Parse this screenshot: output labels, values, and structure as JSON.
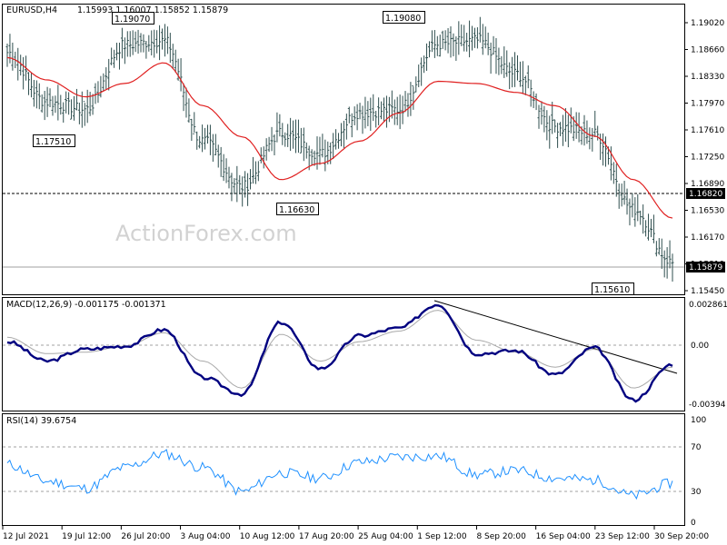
{
  "header": {
    "symbol": "EURUSD,H4",
    "ohlc": "1.15993 1.16007 1.15852 1.15879"
  },
  "watermark": "ActionForex.com",
  "price_axis": {
    "ticks": [
      "1.19020",
      "1.18660",
      "1.18330",
      "1.17970",
      "1.17610",
      "1.17250",
      "1.16890",
      "1.16530",
      "1.16170",
      "1.15810",
      "1.15450"
    ],
    "marker_level": "1.16820",
    "current_price": "1.15879"
  },
  "annotations": {
    "high_jul": "1.19070",
    "low_jul": "1.17510",
    "low_aug": "1.16630",
    "high_sep": "1.19080",
    "low_sep": "1.15610"
  },
  "macd_panel": {
    "title": "MACD(12,26,9) -0.001175 -0.001371",
    "ticks": [
      "0.002861",
      "0.00",
      "-0.00394"
    ]
  },
  "rsi_panel": {
    "title": "RSI(14) 39.6754",
    "ticks": [
      "100",
      "70",
      "30",
      "0"
    ]
  },
  "time_axis": [
    "12 Jul 2021",
    "19 Jul 12:00",
    "26 Jul 20:00",
    "3 Aug 04:00",
    "10 Aug 12:00",
    "17 Aug 20:00",
    "25 Aug 04:00",
    "1 Sep 12:00",
    "8 Sep 20:00",
    "16 Sep 04:00",
    "23 Sep 12:00",
    "30 Sep 20:00"
  ],
  "chart_data": [
    {
      "type": "line",
      "panel": "price",
      "x_labels": [
        "12 Jul 2021",
        "19 Jul 12:00",
        "26 Jul 20:00",
        "3 Aug 04:00",
        "10 Aug 12:00",
        "17 Aug 20:00",
        "25 Aug 04:00",
        "1 Sep 12:00",
        "8 Sep 20:00",
        "16 Sep 04:00",
        "23 Sep 12:00",
        "30 Sep 20:00"
      ],
      "ylim": [
        1.1545,
        1.1938
      ],
      "series": [
        {
          "values": [
            1.1872,
            1.1805,
            1.1795,
            1.1882,
            1.1888,
            1.1752,
            1.169,
            1.1763,
            1.1735,
            1.1791,
            1.1795,
            1.1883,
            1.1888,
            1.1843,
            1.1772,
            1.1762,
            1.166,
            1.1588
          ]
        },
        {
          "values": [
            1.1865,
            1.1835,
            1.1812,
            1.183,
            1.1858,
            1.18,
            1.1758,
            1.17,
            1.1722,
            1.1752,
            1.179,
            1.1833,
            1.183,
            1.1818,
            1.18,
            1.1759,
            1.17,
            1.1648
          ]
        }
      ],
      "colors": {
        "price": "#2f4f4f",
        "ma": "#e02020"
      }
    },
    {
      "type": "line",
      "panel": "macd",
      "ylim": [
        -0.00394,
        0.002861
      ],
      "series": [
        {
          "values": [
            0.0003,
            -0.001,
            -0.0002,
            0.0,
            0.0011,
            -0.0021,
            -0.0032,
            0.0016,
            -0.0015,
            0.0007,
            0.0012,
            0.0028,
            -0.0005,
            -0.0003,
            -0.0019,
            -0.0001,
            -0.0036,
            -0.0012
          ]
        },
        {
          "values": [
            0.0006,
            -0.0005,
            -0.0004,
            0.0,
            0.0009,
            -0.001,
            -0.0028,
            0.0008,
            -0.001,
            0.0003,
            0.001,
            0.0024,
            0.0004,
            -0.0004,
            -0.0014,
            -0.0002,
            -0.0028,
            -0.0014
          ]
        }
      ],
      "colors": {
        "macd": "#000080",
        "signal": "#a9a9a9"
      }
    },
    {
      "type": "line",
      "panel": "rsi",
      "ylim": [
        0,
        100
      ],
      "series": [
        {
          "values": [
            58,
            42,
            35,
            55,
            68,
            55,
            32,
            50,
            45,
            60,
            65,
            66,
            48,
            52,
            45,
            43,
            28,
            40
          ]
        }
      ],
      "colors": {
        "rsi": "#1e90ff"
      }
    }
  ]
}
